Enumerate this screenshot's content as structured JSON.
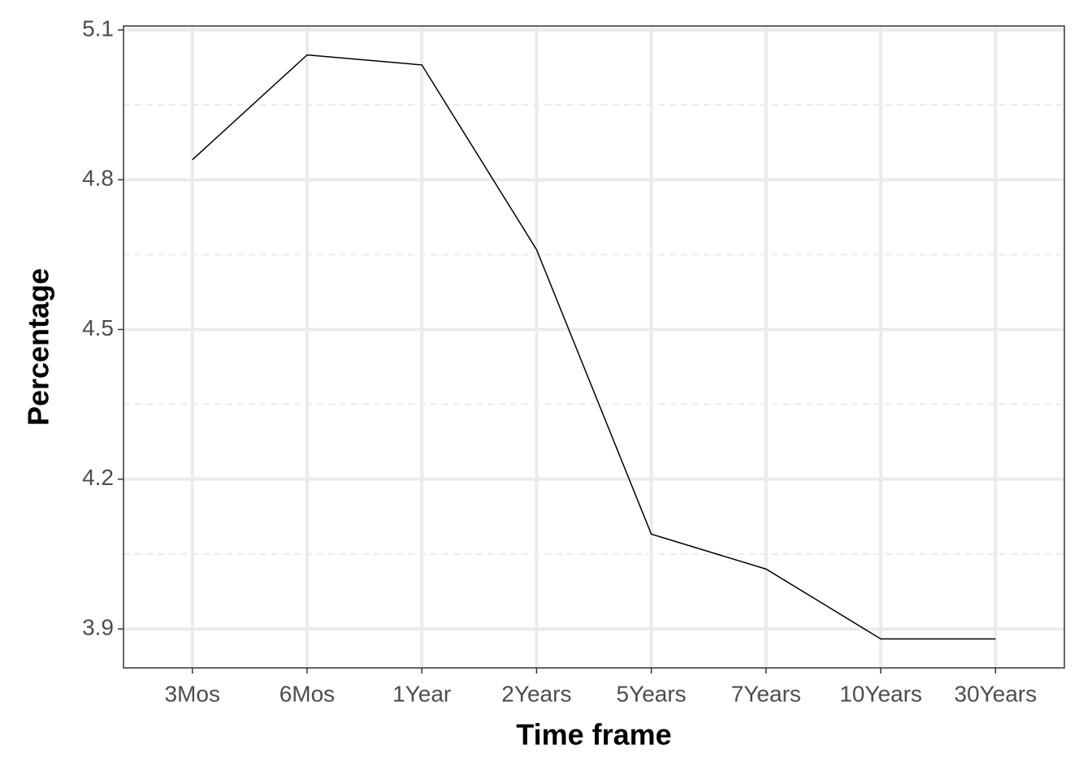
{
  "chart_data": {
    "type": "line",
    "x_label": "Time frame",
    "y_label": "Percentage",
    "categories": [
      "3Mos",
      "6Mos",
      "1Year",
      "2Years",
      "5Years",
      "7Years",
      "10Years",
      "30Years"
    ],
    "values": [
      4.84,
      5.05,
      5.03,
      4.66,
      4.09,
      4.02,
      3.88,
      3.88
    ],
    "color": "#000000",
    "ylim": [
      3.822,
      5.108
    ],
    "yticks": [
      3.9,
      4.2,
      4.5,
      4.8,
      5.1
    ],
    "grid": true,
    "minor_grid": true
  }
}
